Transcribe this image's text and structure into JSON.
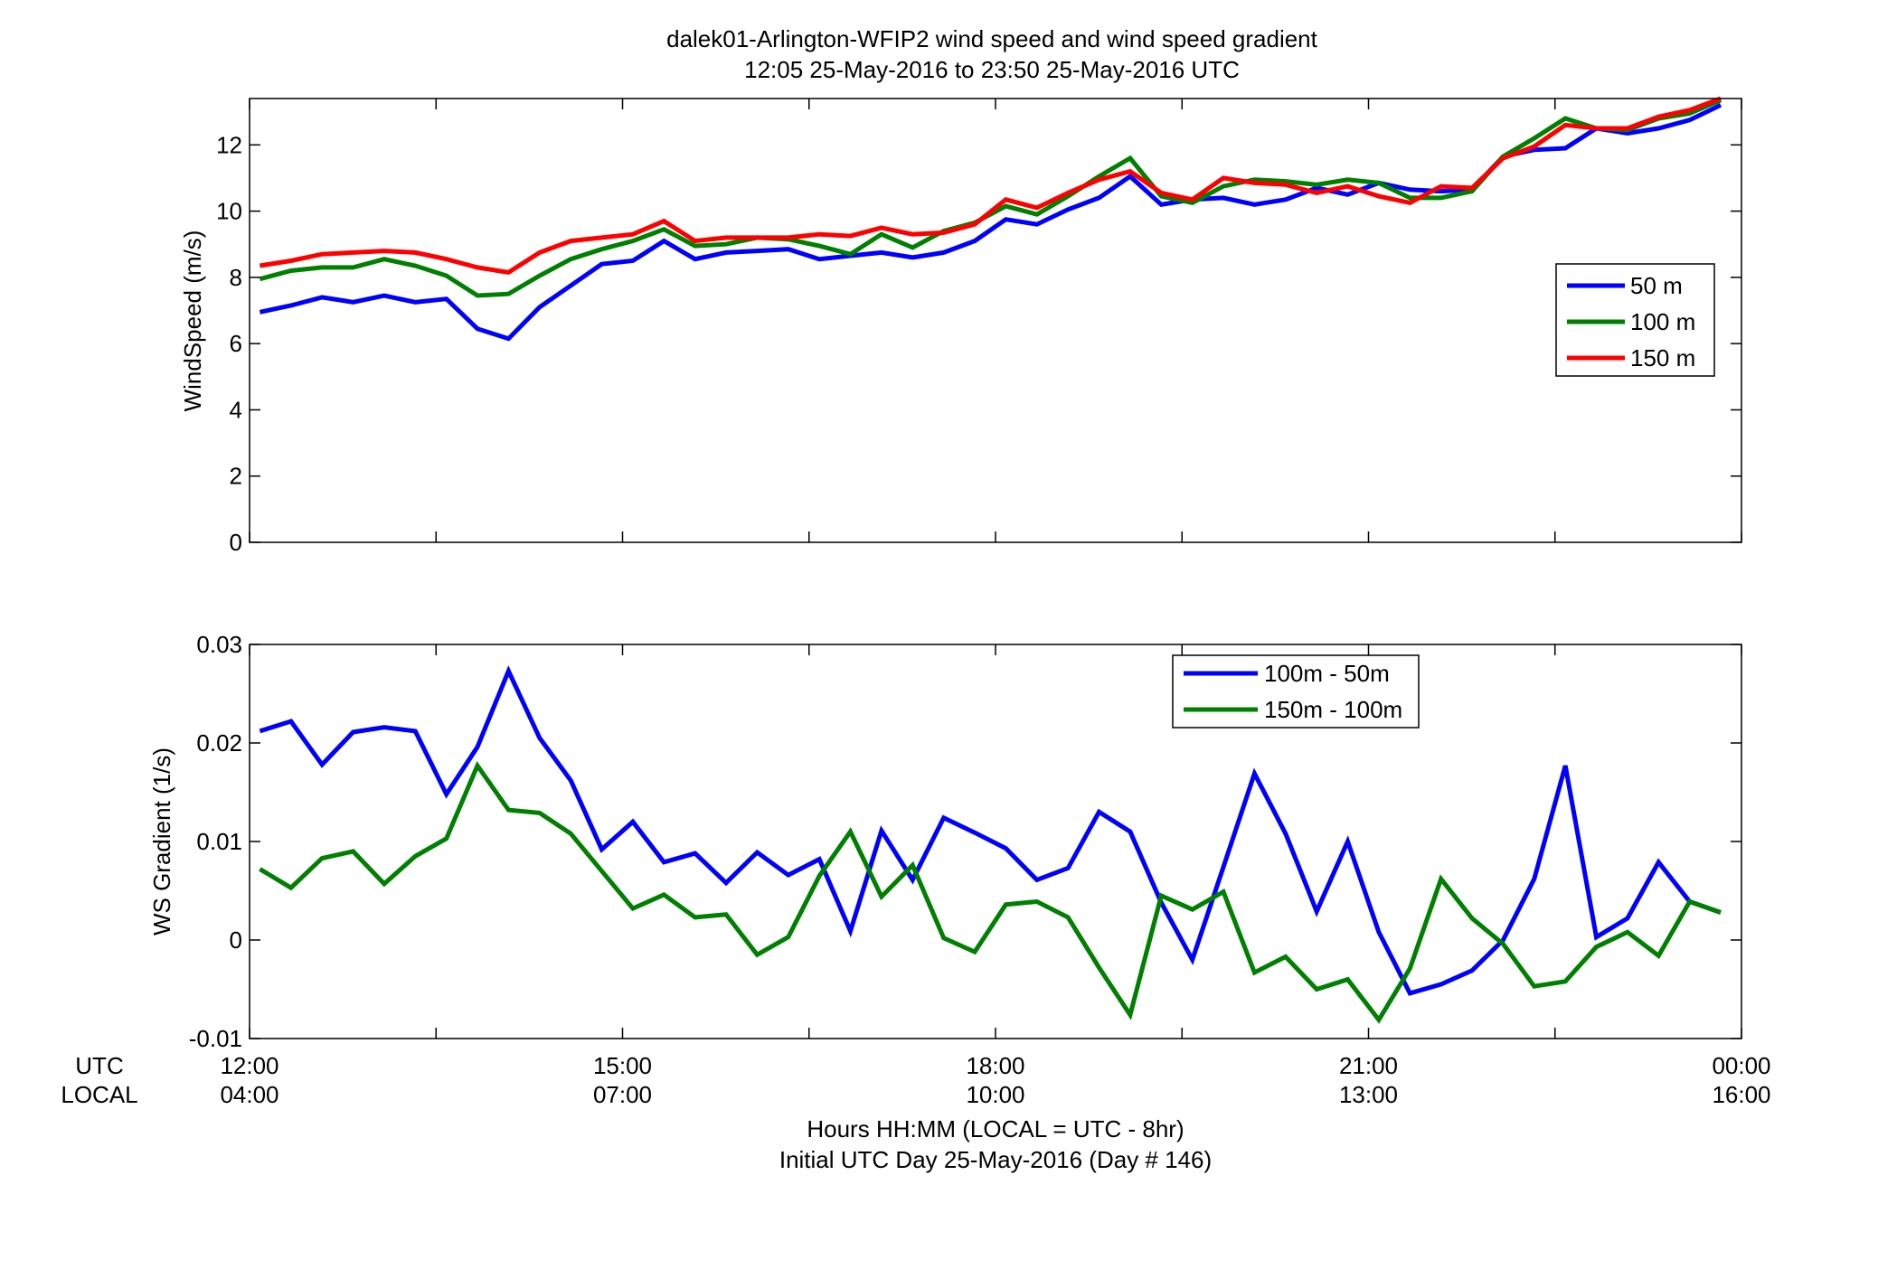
{
  "figure": {
    "title_line1": "dalek01-Arlington-WFIP2  wind speed and wind speed gradient",
    "title_line2": "12:05 25-May-2016 to 23:50 25-May-2016  UTC",
    "xlabel_line1": "Hours HH:MM  (LOCAL = UTC - 8hr)",
    "xlabel_line2": "Initial UTC Day 25-May-2016 (Day # 146)",
    "row_label_utc": "UTC",
    "row_label_local": "LOCAL",
    "x_ticks_utc": [
      "12:00",
      "15:00",
      "18:00",
      "21:00",
      "00:00"
    ],
    "x_ticks_local": [
      "04:00",
      "07:00",
      "10:00",
      "13:00",
      "16:00"
    ]
  },
  "chart_data": [
    {
      "type": "line",
      "ylabel": "WindSpeed (m/s)",
      "xlim": [
        12,
        24
      ],
      "ylim": [
        0,
        13.4
      ],
      "yticks": [
        0,
        2,
        4,
        6,
        8,
        10,
        12
      ],
      "grid": false,
      "legend_position": "right",
      "x": [
        12.083,
        12.333,
        12.583,
        12.833,
        13.083,
        13.333,
        13.583,
        13.833,
        14.083,
        14.333,
        14.583,
        14.833,
        15.083,
        15.333,
        15.583,
        15.833,
        16.083,
        16.333,
        16.583,
        16.833,
        17.083,
        17.333,
        17.583,
        17.833,
        18.083,
        18.333,
        18.583,
        18.833,
        19.083,
        19.333,
        19.583,
        19.833,
        20.083,
        20.333,
        20.583,
        20.833,
        21.083,
        21.333,
        21.583,
        21.833,
        22.083,
        22.333,
        22.583,
        22.833,
        23.083,
        23.333,
        23.583,
        23.833
      ],
      "series": [
        {
          "name": "50 m",
          "color": "#0000ff",
          "values": [
            6.95,
            7.15,
            7.4,
            7.25,
            7.45,
            7.25,
            7.35,
            6.45,
            6.15,
            7.1,
            7.75,
            8.4,
            8.5,
            9.1,
            8.55,
            8.75,
            8.8,
            8.85,
            8.55,
            8.65,
            8.75,
            8.6,
            8.75,
            9.1,
            9.75,
            9.6,
            10.05,
            10.4,
            11.05,
            10.2,
            10.35,
            10.4,
            10.2,
            10.35,
            10.7,
            10.5,
            10.85,
            10.65,
            10.6,
            10.65,
            11.65,
            11.85,
            11.9,
            12.5,
            12.35,
            12.5,
            12.75,
            13.2
          ]
        },
        {
          "name": "100 m",
          "color": "#008000",
          "values": [
            7.95,
            8.2,
            8.3,
            8.3,
            8.55,
            8.35,
            8.05,
            7.45,
            7.5,
            8.05,
            8.55,
            8.85,
            9.1,
            9.45,
            8.95,
            9.0,
            9.2,
            9.15,
            8.95,
            8.7,
            9.3,
            8.9,
            9.4,
            9.65,
            10.15,
            9.9,
            10.45,
            11.05,
            11.6,
            10.45,
            10.25,
            10.75,
            10.95,
            10.9,
            10.8,
            10.95,
            10.85,
            10.4,
            10.4,
            10.6,
            11.65,
            12.2,
            12.8,
            12.5,
            12.45,
            12.8,
            12.95,
            13.35
          ]
        },
        {
          "name": "150 m",
          "color": "#ff0000",
          "values": [
            8.35,
            8.5,
            8.7,
            8.75,
            8.8,
            8.75,
            8.55,
            8.3,
            8.15,
            8.75,
            9.1,
            9.2,
            9.3,
            9.7,
            9.1,
            9.2,
            9.2,
            9.2,
            9.3,
            9.25,
            9.5,
            9.3,
            9.35,
            9.6,
            10.35,
            10.1,
            10.55,
            10.95,
            11.2,
            10.55,
            10.35,
            11.0,
            10.85,
            10.8,
            10.55,
            10.75,
            10.45,
            10.25,
            10.75,
            10.7,
            11.6,
            11.95,
            12.6,
            12.5,
            12.5,
            12.85,
            13.05,
            13.4
          ]
        }
      ]
    },
    {
      "type": "line",
      "ylabel": "WS Gradient (1/s)",
      "xlim": [
        12,
        24
      ],
      "ylim": [
        -0.01,
        0.03
      ],
      "yticks": [
        -0.01,
        0,
        0.01,
        0.02,
        0.03
      ],
      "ytick_labels": [
        "-0.01",
        "0",
        "0.01",
        "0.02",
        "0.03"
      ],
      "grid": false,
      "legend_position": "top-right",
      "x": [
        12.083,
        12.333,
        12.583,
        12.833,
        13.083,
        13.333,
        13.583,
        13.833,
        14.083,
        14.333,
        14.583,
        14.833,
        15.083,
        15.333,
        15.583,
        15.833,
        16.083,
        16.333,
        16.583,
        16.833,
        17.083,
        17.333,
        17.583,
        17.833,
        18.083,
        18.333,
        18.583,
        18.833,
        19.083,
        19.333,
        19.583,
        19.833,
        20.083,
        20.333,
        20.583,
        20.833,
        21.083,
        21.333,
        21.583,
        21.833,
        22.083,
        22.333,
        22.583,
        22.833,
        23.083,
        23.333,
        23.583,
        23.833
      ],
      "series": [
        {
          "name": "100m - 50m",
          "color": "#0000ff",
          "values": [
            0.0212,
            0.0222,
            0.0178,
            0.0211,
            0.0216,
            0.0212,
            0.0148,
            0.0196,
            0.0273,
            0.0205,
            0.0162,
            0.0092,
            0.012,
            0.0079,
            0.0088,
            0.0058,
            0.0089,
            0.0066,
            0.0082,
            0.0009,
            0.0111,
            0.0061,
            0.0124,
            0.0109,
            0.0093,
            0.0061,
            0.0073,
            0.013,
            0.011,
            0.0038,
            -0.002,
            0.0074,
            0.0169,
            0.0108,
            0.0029,
            0.01,
            0.0008,
            -0.0054,
            -0.0045,
            -0.0031,
            0.0,
            0.0062,
            0.0177,
            0.0003,
            0.0022,
            0.0079,
            0.0039,
            0.0028
          ]
        },
        {
          "name": "150m - 100m",
          "color": "#008000",
          "values": [
            0.0072,
            0.0053,
            0.0083,
            0.009,
            0.0057,
            0.0085,
            0.0103,
            0.0177,
            0.0132,
            0.0129,
            0.0108,
            0.007,
            0.0032,
            0.0046,
            0.0023,
            0.0026,
            -0.0015,
            0.0003,
            0.0065,
            0.011,
            0.0044,
            0.0076,
            0.0002,
            -0.0012,
            0.0036,
            0.0039,
            0.0023,
            -0.0028,
            -0.0076,
            0.0045,
            0.0031,
            0.0049,
            -0.0033,
            -0.0017,
            -0.005,
            -0.004,
            -0.0081,
            -0.0029,
            0.0062,
            0.0022,
            -0.0004,
            -0.0047,
            -0.0042,
            -0.0007,
            0.0008,
            -0.0016,
            0.0039,
            0.0028
          ]
        }
      ]
    }
  ]
}
